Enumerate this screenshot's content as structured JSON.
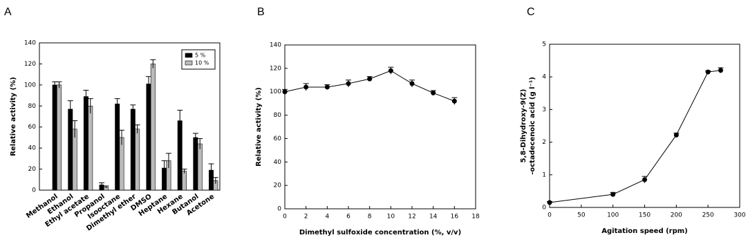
{
  "chart_data": [
    {
      "type": "bar",
      "title": "A",
      "y_label": "Relative activity (%)",
      "categories": [
        "Methanol",
        "Ethanol",
        "Ethyl acetate",
        "Propanol",
        "Isooctane",
        "Dimethyl ether",
        "DMSO",
        "Heptane",
        "Hexane",
        "Butanol",
        "Acetone"
      ],
      "series": [
        {
          "name": "5 %",
          "color": "#000000",
          "values": [
            100,
            77,
            89,
            5,
            82,
            77,
            101,
            21,
            66,
            50,
            19
          ],
          "errors": [
            3,
            8,
            6,
            2,
            5,
            4,
            7,
            7,
            10,
            4,
            6
          ]
        },
        {
          "name": "10 %",
          "color": "#bbbbbb",
          "values": [
            100,
            58,
            80,
            3,
            50,
            58,
            120,
            28,
            18,
            44,
            9
          ],
          "errors": [
            3,
            8,
            7,
            1,
            7,
            4,
            4,
            7,
            2,
            5,
            3
          ]
        }
      ],
      "ylim": [
        0,
        140
      ],
      "yticks": [
        0,
        20,
        40,
        60,
        80,
        100,
        120,
        140
      ],
      "legend": "upper-right"
    },
    {
      "type": "line",
      "title": "B",
      "y_label": "Relative activity (%)",
      "x_label": "Dimethyl sulfoxide concentration (%, v/v)",
      "x": [
        0,
        2,
        4,
        6,
        8,
        10,
        12,
        14,
        16
      ],
      "series": [
        {
          "color": "#000000",
          "values": [
            100,
            104,
            104,
            107,
            111,
            118,
            107,
            99,
            92
          ],
          "errors": [
            2,
            3,
            2,
            3,
            2,
            3,
            3,
            2,
            3
          ]
        }
      ],
      "xlim": [
        0,
        18
      ],
      "xticks": [
        0,
        2,
        4,
        6,
        8,
        10,
        12,
        14,
        16,
        18
      ],
      "ylim": [
        0,
        140
      ],
      "yticks": [
        0,
        20,
        40,
        60,
        80,
        100,
        120,
        140
      ]
    },
    {
      "type": "line",
      "title": "C",
      "y_label": [
        "5,8-Dihydroxy-9(Z)",
        "-octadecenoic acid (g l⁻¹)"
      ],
      "x_label": "Agitation speed (rpm)",
      "x": [
        0,
        100,
        150,
        200,
        250,
        270
      ],
      "series": [
        {
          "color": "#000000",
          "values": [
            0.15,
            0.4,
            0.85,
            2.22,
            4.15,
            4.2
          ],
          "errors": [
            0.03,
            0.06,
            0.1,
            0.06,
            0.04,
            0.08
          ]
        }
      ],
      "xlim": [
        0,
        300
      ],
      "xticks": [
        0,
        50,
        100,
        150,
        200,
        250,
        300
      ],
      "ylim": [
        0,
        5
      ],
      "yticks": [
        0,
        1,
        2,
        3,
        4,
        5
      ]
    }
  ]
}
